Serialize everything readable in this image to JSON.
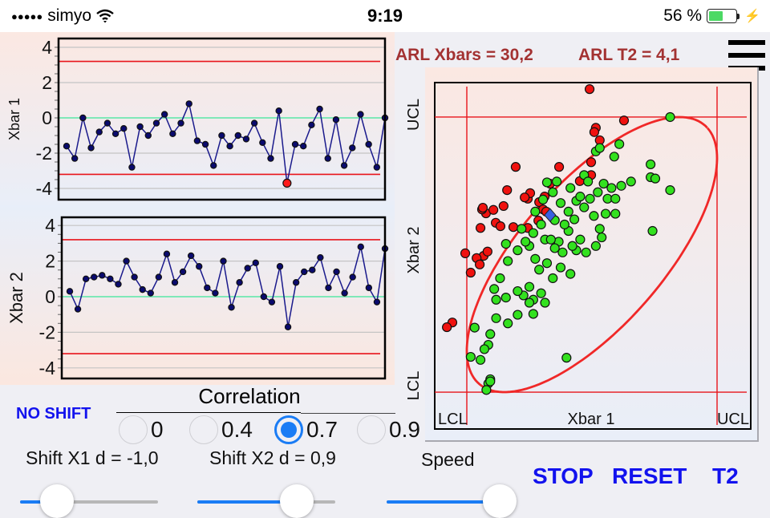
{
  "status_bar": {
    "signal_dots": "●●●●●",
    "carrier": "simyo",
    "wifi_icon": "wifi-icon",
    "time": "9:19",
    "battery_text": "56 %",
    "battery_level": 0.56,
    "charging_icon": "⚡"
  },
  "header": {
    "arl_xbars": "ARL Xbars = 30,2",
    "arl_t2": "ARL T2 = 4,1",
    "menu_icon": "hamburger-menu-icon"
  },
  "colors": {
    "limit_line": "#e8141b",
    "center_line": "#7fe8b8",
    "series_line": "#1a1a8c",
    "point_fill": "#0a0a6e",
    "out_point": "#ff1a1a",
    "in_control_scatter": "#33e11f",
    "out_control_scatter": "#f0120f",
    "current_point": "#3a5fe0",
    "accent_blue": "#1a7cf5",
    "button_blue": "#1212ee",
    "arl_red": "#a33232"
  },
  "chart_data": [
    {
      "type": "line",
      "title": "",
      "ylabel": "Xbar 1",
      "xlabel": "",
      "ylim": [
        -4.4,
        4.4
      ],
      "yticks": [
        "4",
        "2",
        "0",
        "-2",
        "-4"
      ],
      "ytick_values": [
        4,
        2,
        0,
        -2,
        -4
      ],
      "grid": true,
      "ucl": 3.2,
      "lcl": -3.2,
      "center": 0,
      "values": [
        -1.6,
        -2.3,
        0.0,
        -1.7,
        -0.8,
        -0.3,
        -0.9,
        -0.6,
        -2.8,
        -0.5,
        -1.0,
        -0.3,
        0.2,
        -0.9,
        -0.3,
        0.8,
        -1.3,
        -1.5,
        -2.7,
        -1.0,
        -1.6,
        -1.0,
        -1.2,
        -0.3,
        -1.4,
        -2.3,
        0.4,
        -3.7,
        -1.5,
        -1.6,
        -0.4,
        0.5,
        -2.3,
        -0.1,
        -2.7,
        -1.7,
        0.2,
        -1.5,
        -2.8,
        0.0
      ]
    },
    {
      "type": "line",
      "title": "",
      "ylabel": "Xbar 2",
      "xlabel": "",
      "ylim": [
        -4.4,
        4.4
      ],
      "yticks": [
        "4",
        "2",
        "0",
        "-2",
        "-4"
      ],
      "ytick_values": [
        4,
        2,
        0,
        -2,
        -4
      ],
      "grid": true,
      "ucl": 3.2,
      "lcl": -3.2,
      "center": 0,
      "values": [
        0.3,
        -0.7,
        1.0,
        1.1,
        1.2,
        1.0,
        0.7,
        2.0,
        1.1,
        0.4,
        0.2,
        1.1,
        2.4,
        0.8,
        1.4,
        2.3,
        1.7,
        0.5,
        0.2,
        2.0,
        -0.6,
        0.8,
        1.6,
        1.9,
        0.0,
        -0.3,
        1.7,
        -1.7,
        0.8,
        1.4,
        1.5,
        2.2,
        0.5,
        1.4,
        0.2,
        1.1,
        2.8,
        0.5,
        -0.3,
        2.7
      ]
    },
    {
      "type": "scatter",
      "title": "",
      "xlabel": "Xbar 1",
      "ylabel": "Xbar 2",
      "x_limit_labels": [
        "LCL",
        "UCL"
      ],
      "y_limit_labels": [
        "LCL",
        "UCL"
      ],
      "limits": [
        -3.2,
        3.2
      ],
      "xlim": [
        -4.0,
        4.1
      ],
      "ylim": [
        -4.0,
        4.0
      ],
      "correlation": 0.7,
      "current_point": [
        -1.07,
        0.92
      ],
      "series": [
        {
          "name": "out_of_control",
          "points": [
            [
              -0.06,
              3.85
            ],
            [
              0.1,
              2.95
            ],
            [
              0.06,
              2.85
            ],
            [
              0.2,
              2.66
            ],
            [
              0.82,
              3.12
            ],
            [
              -0.02,
              2.15
            ],
            [
              -0.02,
              1.85
            ],
            [
              -0.84,
              2.04
            ],
            [
              -1.95,
              2.04
            ],
            [
              -1.07,
              1.65
            ],
            [
              -0.31,
              1.71
            ],
            [
              -1.21,
              1.35
            ],
            [
              -1.35,
              1.22
            ],
            [
              -1.64,
              1.3
            ],
            [
              -2.17,
              1.5
            ],
            [
              -2.71,
              0.96
            ],
            [
              -2.52,
              1.04
            ],
            [
              -2.81,
              1.05
            ],
            [
              -2.46,
              0.74
            ],
            [
              -2.85,
              0.62
            ],
            [
              -1.58,
              1.43
            ],
            [
              -1.72,
              1.33
            ],
            [
              -1.25,
              1.05
            ],
            [
              -1.37,
              0.79
            ],
            [
              -1.64,
              0.62
            ],
            [
              -2.34,
              0.66
            ],
            [
              -2.01,
              0.64
            ],
            [
              -2.77,
              -0.03
            ],
            [
              -3.1,
              -0.42
            ],
            [
              -2.67,
              0.07
            ],
            [
              -3.24,
              0.03
            ],
            [
              -2.95,
              -0.08
            ],
            [
              -2.87,
              -0.23
            ],
            [
              -3.57,
              -1.58
            ],
            [
              -3.71,
              -1.69
            ],
            [
              -2.79,
              1.09
            ],
            [
              -2.26,
              1.13
            ],
            [
              -1.17,
              1.0
            ]
          ]
        },
        {
          "name": "in_control",
          "points": [
            [
              2.0,
              3.2
            ],
            [
              0.7,
              2.57
            ],
            [
              0.57,
              2.28
            ],
            [
              0.1,
              2.4
            ],
            [
              0.2,
              2.48
            ],
            [
              1.5,
              2.1
            ],
            [
              1.5,
              1.8
            ],
            [
              1.62,
              1.77
            ],
            [
              2.0,
              1.5
            ],
            [
              0.75,
              1.6
            ],
            [
              1.0,
              1.7
            ],
            [
              0.5,
              1.55
            ],
            [
              0.3,
              1.65
            ],
            [
              -0.2,
              1.85
            ],
            [
              -0.1,
              1.7
            ],
            [
              0.15,
              1.45
            ],
            [
              0.4,
              1.3
            ],
            [
              0.6,
              1.3
            ],
            [
              0.35,
              0.95
            ],
            [
              1.55,
              0.55
            ],
            [
              0.2,
              0.6
            ],
            [
              0.25,
              0.4
            ],
            [
              0.1,
              0.2
            ],
            [
              -0.4,
              0.1
            ],
            [
              -0.15,
              0.05
            ],
            [
              -0.5,
              0.2
            ],
            [
              -0.6,
              0.55
            ],
            [
              -0.85,
              0.3
            ],
            [
              -0.95,
              0.15
            ],
            [
              -1.2,
              0.35
            ],
            [
              -1.3,
              0.7
            ],
            [
              -1.5,
              0.5
            ],
            [
              -1.8,
              0.6
            ],
            [
              -1.6,
              0.2
            ],
            [
              -1.45,
              -0.1
            ],
            [
              -1.35,
              -0.35
            ],
            [
              -1.15,
              -0.2
            ],
            [
              -1.0,
              -0.55
            ],
            [
              -0.8,
              -0.3
            ],
            [
              -0.75,
              0.05
            ],
            [
              -0.55,
              -0.45
            ],
            [
              -0.3,
              0.35
            ],
            [
              0.05,
              0.9
            ],
            [
              -0.2,
              1.1
            ],
            [
              -0.4,
              1.25
            ],
            [
              -0.6,
              1.0
            ],
            [
              -0.8,
              1.2
            ],
            [
              -1.0,
              1.45
            ],
            [
              -0.9,
              1.7
            ],
            [
              -0.55,
              1.55
            ],
            [
              -0.3,
              1.35
            ],
            [
              -0.05,
              1.3
            ],
            [
              -1.45,
              1.0
            ],
            [
              -1.25,
              1.28
            ],
            [
              -1.3,
              -0.9
            ],
            [
              -1.6,
              -0.75
            ],
            [
              -1.5,
              -1.05
            ],
            [
              -1.75,
              -0.95
            ],
            [
              -1.9,
              -0.85
            ],
            [
              -2.2,
              -1.0
            ],
            [
              -2.45,
              -1.05
            ],
            [
              -2.5,
              -0.8
            ],
            [
              -1.2,
              -1.12
            ],
            [
              -1.5,
              -1.38
            ],
            [
              -1.6,
              -1.12
            ],
            [
              -1.9,
              -1.4
            ],
            [
              -2.45,
              -1.48
            ],
            [
              -2.15,
              -1.6
            ],
            [
              -2.6,
              -1.85
            ],
            [
              -2.65,
              -2.1
            ],
            [
              -2.75,
              -2.2
            ],
            [
              -3.1,
              -2.38
            ],
            [
              -2.85,
              -2.45
            ],
            [
              -2.6,
              -2.9
            ],
            [
              -2.65,
              -3.0
            ],
            [
              -2.7,
              -3.15
            ],
            [
              -2.6,
              -2.95
            ],
            [
              -3.0,
              -1.7
            ],
            [
              -2.35,
              -0.55
            ],
            [
              -2.15,
              -0.15
            ],
            [
              -1.9,
              0.1
            ],
            [
              -0.65,
              -2.4
            ],
            [
              -1.15,
              1.68
            ],
            [
              -0.95,
              0.8
            ],
            [
              -0.7,
              0.7
            ],
            [
              -0.45,
              0.82
            ],
            [
              0.6,
              0.95
            ],
            [
              -1.05,
              0.35
            ],
            [
              -1.7,
              0.3
            ],
            [
              -2.2,
              0.25
            ]
          ]
        }
      ]
    }
  ],
  "controls": {
    "no_shift_label": "NO SHIFT",
    "correlation_title": "Correlation",
    "correlation_options": [
      {
        "label": "0",
        "selected": false
      },
      {
        "label": "0.4",
        "selected": false
      },
      {
        "label": "0.7",
        "selected": true
      },
      {
        "label": "0.9",
        "selected": false
      }
    ],
    "shift_x1_label": "Shift X1 d = -1,0",
    "shift_x1_value": 0.27,
    "shift_x2_label": "Shift X2 d = 0,9",
    "shift_x2_value": 0.72,
    "speed_label": "Speed",
    "speed_value": 0.99,
    "stop_label": "STOP",
    "reset_label": "RESET",
    "t2_label": "T2"
  }
}
